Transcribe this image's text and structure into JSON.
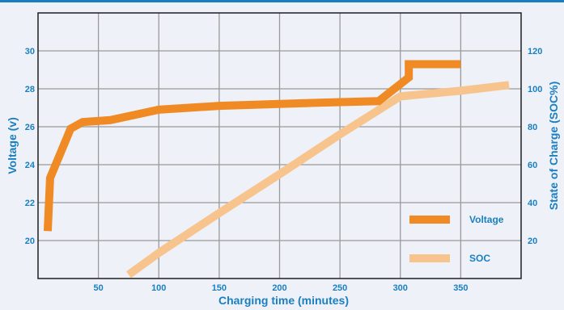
{
  "chart_data": {
    "type": "line",
    "xlabel": "Charging time (minutes)",
    "ylabel_left": "Voltage (v)",
    "ylabel_right": "State of Charge (SOC%)",
    "x_ticks": [
      50,
      100,
      150,
      200,
      250,
      300,
      350
    ],
    "y_left_ticks": [
      20,
      22,
      24,
      26,
      28,
      30
    ],
    "y_right_ticks": [
      20,
      40,
      60,
      80,
      100,
      120
    ],
    "xlim": [
      0,
      400
    ],
    "ylim_left": [
      18,
      32
    ],
    "ylim_right": [
      0,
      140
    ],
    "grid": true,
    "legend_position": "bottom-right",
    "series": [
      {
        "name": "Voltage",
        "axis": "left",
        "color": "#f08a24",
        "x": [
          8,
          10,
          27,
          37,
          60,
          100,
          150,
          200,
          250,
          282,
          305,
          307,
          307,
          350
        ],
        "y": [
          20.5,
          23.3,
          25.9,
          26.25,
          26.35,
          26.9,
          27.1,
          27.2,
          27.3,
          27.35,
          28.5,
          28.6,
          29.3,
          29.3
        ]
      },
      {
        "name": "SOC",
        "axis": "right",
        "color": "#f7c48e",
        "x": [
          75,
          100,
          150,
          200,
          250,
          300,
          350,
          390
        ],
        "y": [
          2,
          13.5,
          34.5,
          55,
          76,
          96,
          99,
          102
        ]
      }
    ]
  }
}
